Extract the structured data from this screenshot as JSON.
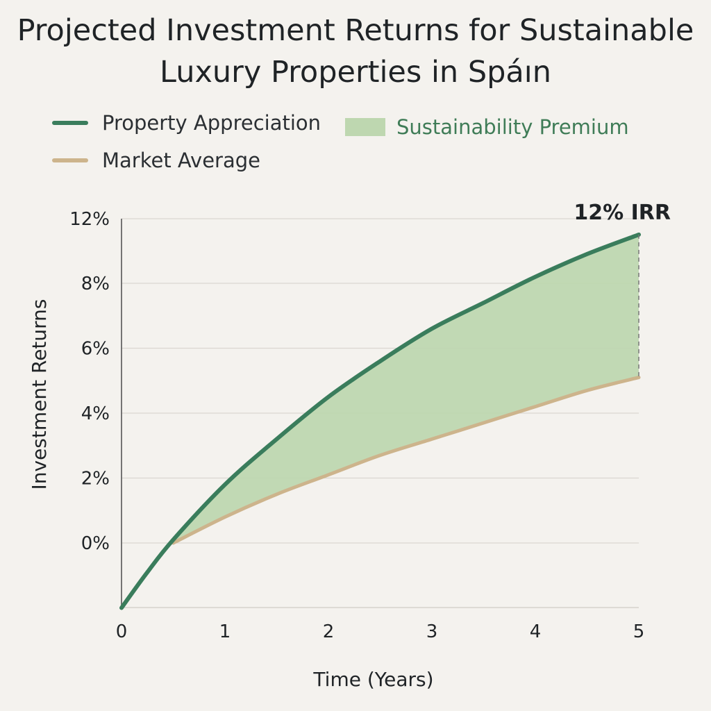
{
  "chart_data": {
    "type": "area",
    "title": "Projected Investment Returns for Sustainable Luxury Properties in Spáın",
    "xlabel": "Time (Years)",
    "ylabel": "Investment Returns",
    "x_ticks": [
      "0",
      "1",
      "2",
      "3",
      "4",
      "5"
    ],
    "y_ticks": [
      "0%",
      "2%",
      "4%",
      "6%",
      "8%",
      "12%"
    ],
    "annotation": "12% IRR",
    "legend": [
      {
        "label": "Property Appreciation",
        "kind": "line",
        "color": "#3a7d5c"
      },
      {
        "label": "Sustainability Premium",
        "kind": "area",
        "color": "#bed7b0"
      },
      {
        "label": "Market Average",
        "kind": "line",
        "color": "#cdb48c"
      }
    ],
    "grid": true,
    "series": [
      {
        "name": "Property Appreciation",
        "color": "#3a7d5c",
        "x": [
          0,
          0.25,
          0.5,
          1,
          1.5,
          2,
          2.5,
          3,
          3.5,
          4,
          4.5,
          5
        ],
        "y": [
          -2,
          -0.9,
          0.1,
          1.8,
          3.2,
          4.5,
          5.6,
          6.6,
          7.4,
          8.2,
          8.9,
          9.5
        ]
      },
      {
        "name": "Market Average",
        "color": "#cdb48c",
        "x": [
          0.5,
          1,
          1.5,
          2,
          2.5,
          3,
          3.5,
          4,
          4.5,
          5
        ],
        "y": [
          0,
          0.8,
          1.5,
          2.1,
          2.7,
          3.2,
          3.7,
          4.2,
          4.7,
          5.1
        ]
      }
    ],
    "fill_between": {
      "name": "Sustainability Premium",
      "color": "#bed7b0",
      "from_x": 0.5,
      "to_x": 5
    }
  }
}
